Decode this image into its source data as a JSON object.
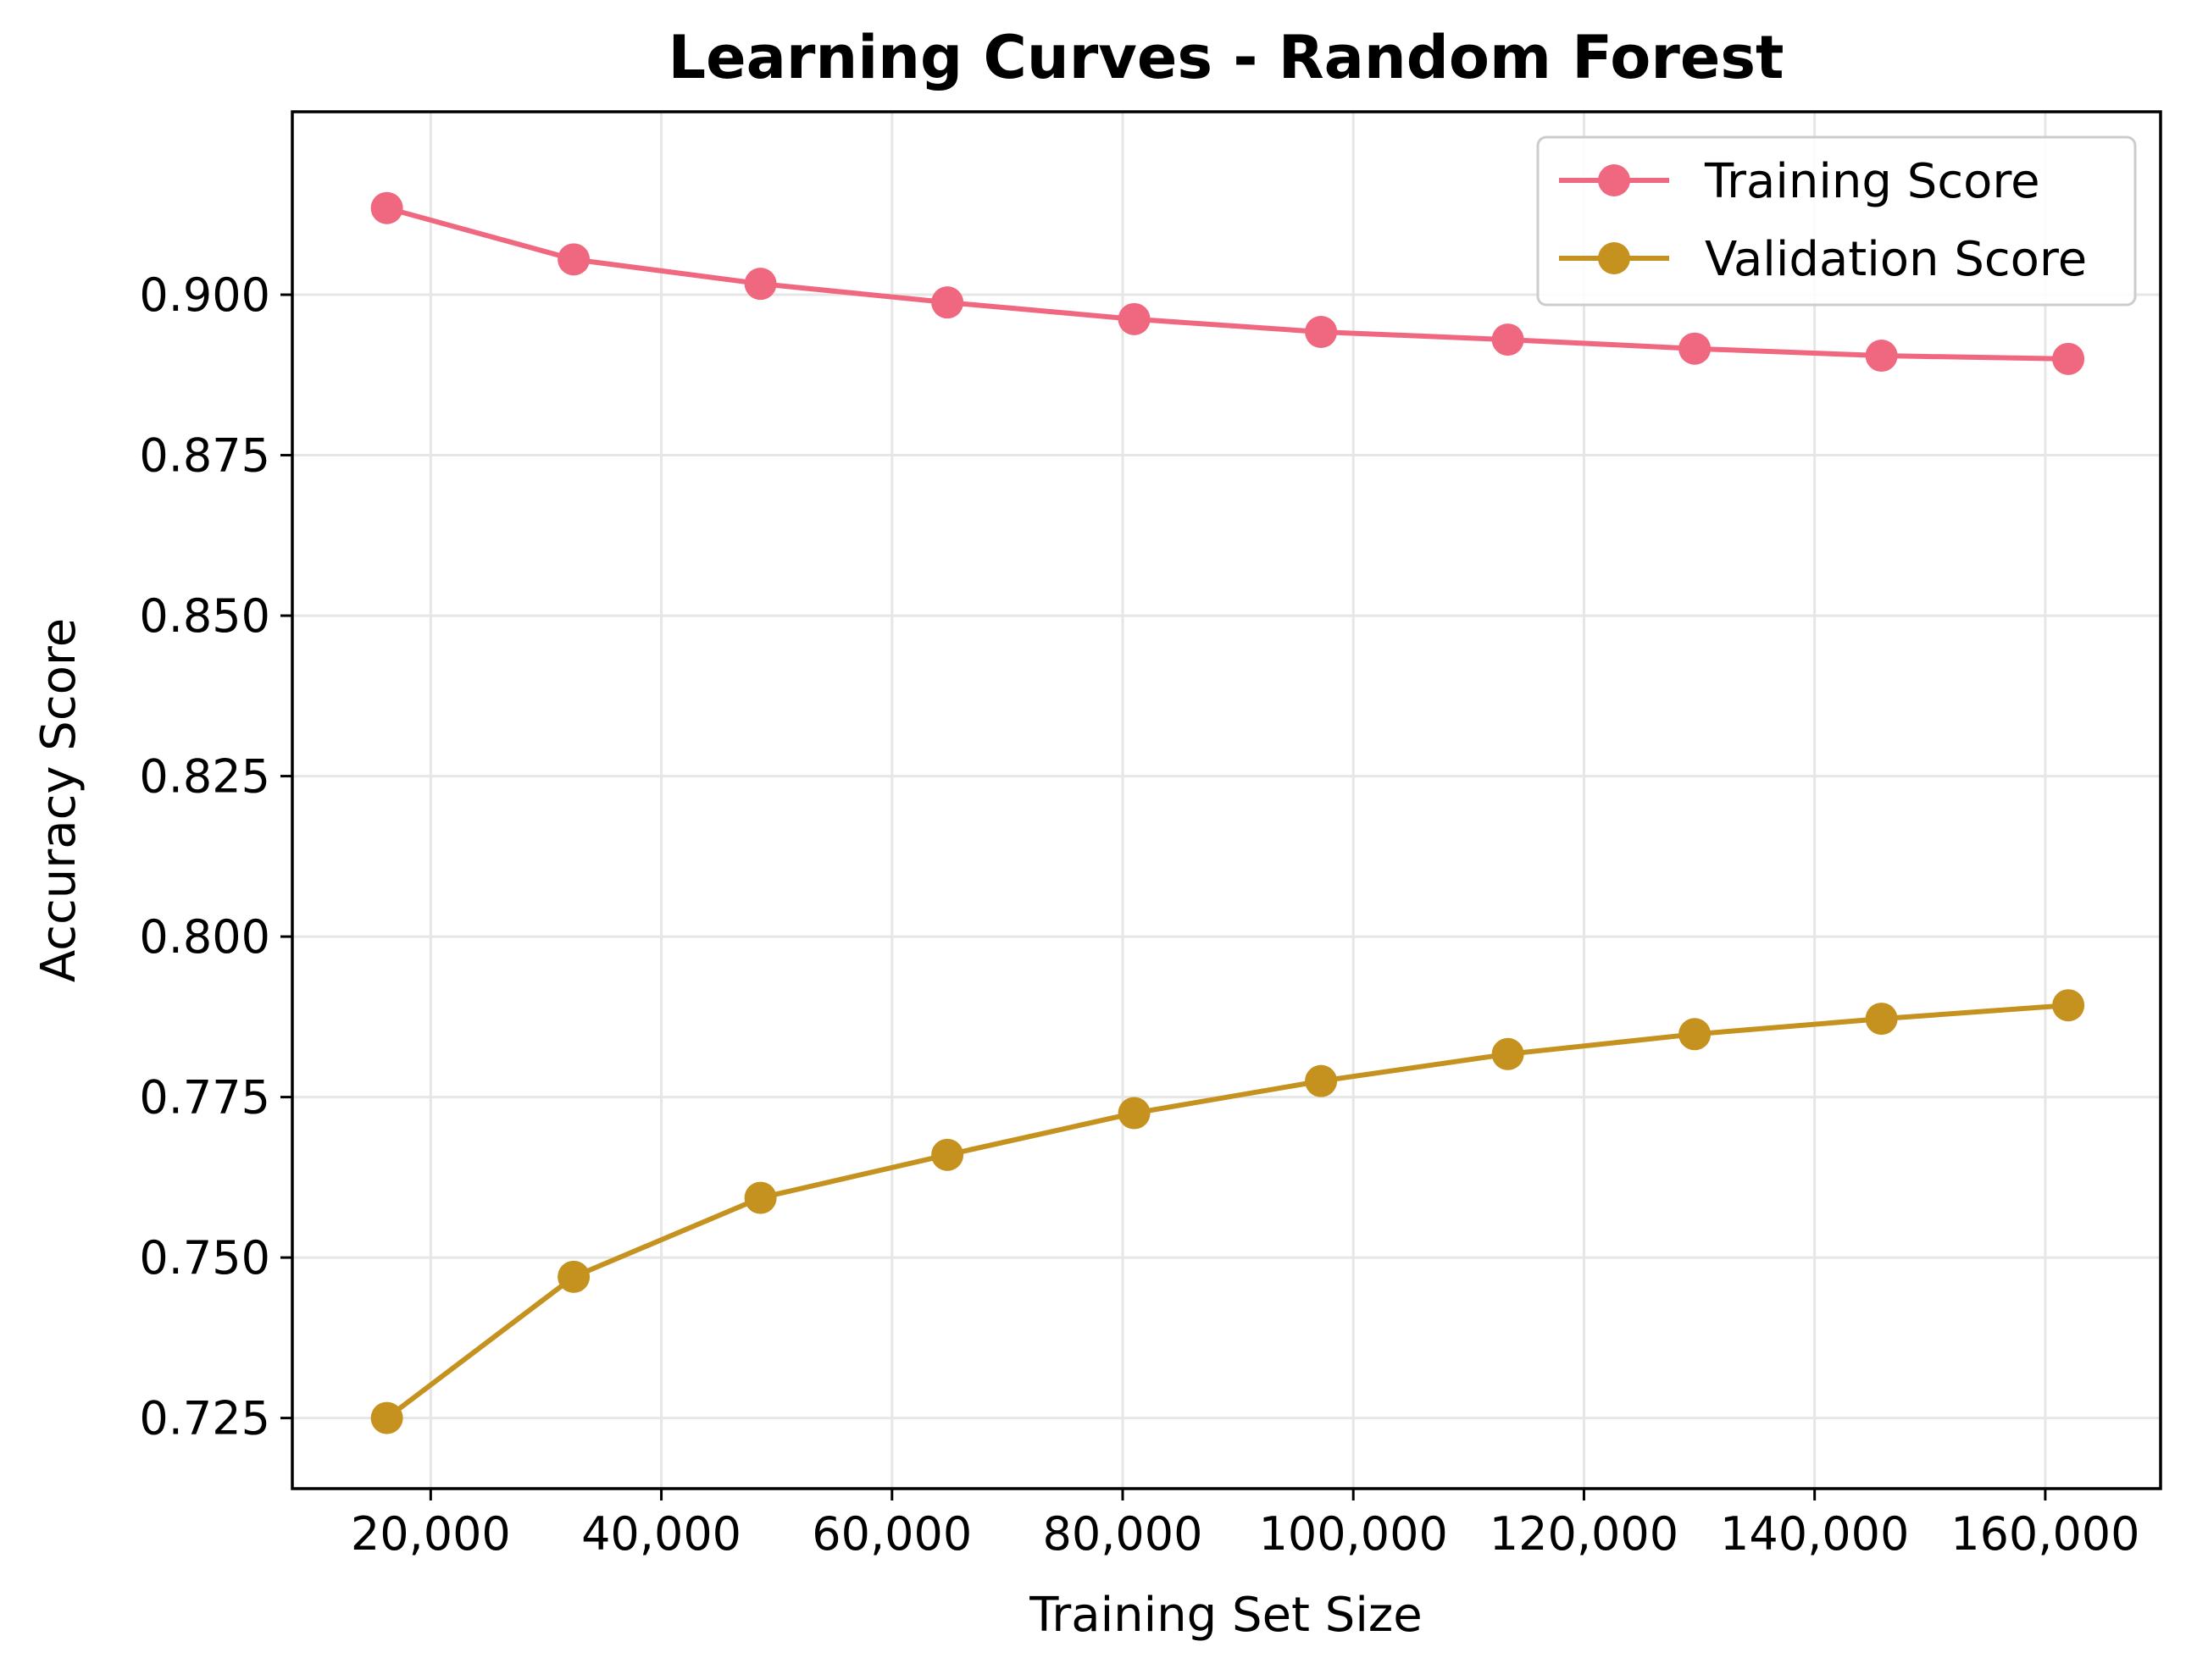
{
  "chart_data": {
    "type": "line",
    "title": "Learning Curves - Random Forest",
    "xlabel": "Training Set Size",
    "ylabel": "Accuracy Score",
    "xlim": [
      8000,
      170000
    ],
    "ylim": [
      0.714,
      0.9285
    ],
    "xticks": [
      20000,
      40000,
      60000,
      80000,
      100000,
      120000,
      140000,
      160000
    ],
    "xtick_labels": [
      "20,000",
      "40,000",
      "60,000",
      "80,000",
      "100,000",
      "120,000",
      "140,000",
      "160,000"
    ],
    "yticks": [
      0.725,
      0.75,
      0.775,
      0.8,
      0.825,
      0.85,
      0.875,
      0.9
    ],
    "ytick_labels": [
      "0.725",
      "0.750",
      "0.775",
      "0.800",
      "0.825",
      "0.850",
      "0.875",
      "0.900"
    ],
    "grid": true,
    "legend_position": "top-right",
    "x": [
      16200,
      32400,
      48600,
      64800,
      81000,
      97200,
      113400,
      129600,
      145800,
      162000
    ],
    "series": [
      {
        "name": "Training Score",
        "color": "#f0687f",
        "values": [
          0.9135,
          0.9055,
          0.9017,
          0.8988,
          0.8962,
          0.8942,
          0.893,
          0.8916,
          0.8905,
          0.89
        ]
      },
      {
        "name": "Validation Score",
        "color": "#c5921f",
        "values": [
          0.725,
          0.747,
          0.7593,
          0.766,
          0.7725,
          0.7775,
          0.7817,
          0.7848,
          0.7872,
          0.7893
        ]
      }
    ]
  }
}
